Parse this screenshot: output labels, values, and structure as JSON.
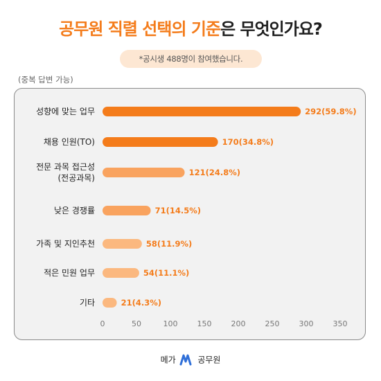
{
  "title": {
    "highlight": "공무원 직렬 선택의 기",
    "highlight2": "준",
    "rest": "은 무엇인가요?"
  },
  "note": "*공시생 488명이 참여했습니다.",
  "multi_answer": "(중복 답변 가능)",
  "footer": {
    "left": "메가",
    "right": "공무원"
  },
  "colors": {
    "accent": "#f47c1b",
    "bar_light": "#f9a35f",
    "bar_lighter": "#fbb87f",
    "note_bg": "#fde7d3"
  },
  "chart_data": {
    "type": "bar",
    "orientation": "horizontal",
    "categories": [
      "성향에 맞는 업무",
      "채용 인원(TO)",
      "전문 과목 접근성\n(전공과목)",
      "낮은 경쟁률",
      "가족 및 지인추천",
      "적은 민원 업무",
      "기타"
    ],
    "values": [
      292,
      170,
      121,
      71,
      58,
      54,
      21
    ],
    "labels": [
      "292(59.8%)",
      "170(34.8%)",
      "121(24.8%)",
      "71(14.5%)",
      "58(11.9%)",
      "54(11.1%)",
      "21(4.3%)"
    ],
    "xticks": [
      0,
      50,
      100,
      150,
      200,
      250,
      300,
      350
    ],
    "xlim": [
      0,
      350
    ],
    "grid": false
  }
}
